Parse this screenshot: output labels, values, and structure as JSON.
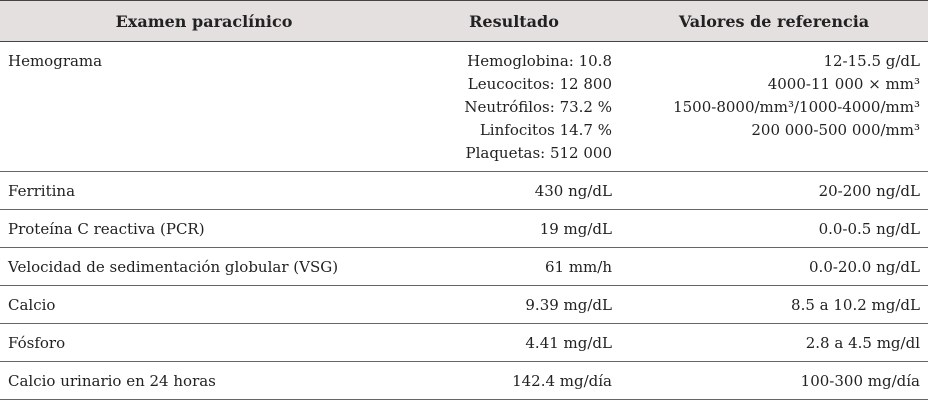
{
  "table": {
    "header": [
      "Examen paraclínico",
      "Resultado",
      "Valores de referencia"
    ],
    "rows": [
      {
        "exam": "Hemograma",
        "results": [
          "Hemoglobina: 10.8",
          "Leucocitos: 12 800",
          "Neutrófilos: 73.2 %",
          "Linfocitos 14.7 %",
          "Plaquetas: 512 000"
        ],
        "references": [
          "12-15.5 g/dL",
          "4000-11 000 × mm³",
          "1500-8000/mm³/1000-4000/mm³",
          "200 000-500 000/mm³"
        ]
      },
      {
        "exam": "Ferritina",
        "results": [
          "430 ng/dL"
        ],
        "references": [
          "20-200 ng/dL"
        ]
      },
      {
        "exam": "Proteína C reactiva (PCR)",
        "results": [
          "19 mg/dL"
        ],
        "references": [
          "0.0-0.5 ng/dL"
        ]
      },
      {
        "exam": "Velocidad de sedimentación globular (VSG)",
        "results": [
          "61 mm/h"
        ],
        "references": [
          "0.0-20.0 ng/dL"
        ]
      },
      {
        "exam": "Calcio",
        "results": [
          "9.39 mg/dL"
        ],
        "references": [
          "8.5 a 10.2 mg/dL"
        ]
      },
      {
        "exam": "Fósforo",
        "results": [
          "4.41 mg/dL"
        ],
        "references": [
          "2.8 a 4.5 mg/dl"
        ]
      },
      {
        "exam": "Calcio urinario en 24 horas",
        "results": [
          "142.4 mg/día"
        ],
        "references": [
          "100-300 mg/día"
        ]
      }
    ]
  }
}
